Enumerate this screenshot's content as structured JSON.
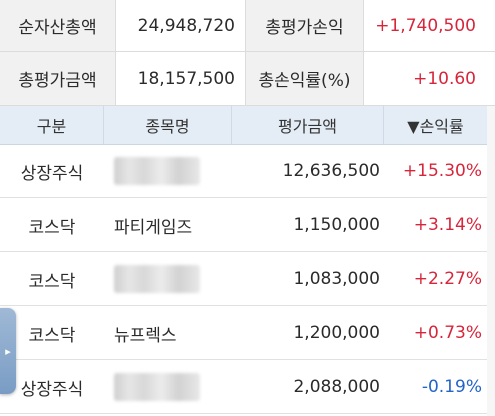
{
  "summary": {
    "rows": [
      {
        "label1": "순자산총액",
        "value1": "24,948,720",
        "label2": "총평가손익",
        "value2": "+1,740,500"
      },
      {
        "label1": "총평가금액",
        "value1": "18,157,500",
        "label2": "총손익률(%)",
        "value2": "+10.60"
      }
    ]
  },
  "table": {
    "headers": {
      "type": "구분",
      "name": "종목명",
      "amount": "평가금액",
      "rate": "▼손익률"
    },
    "rows": [
      {
        "type": "상장주식",
        "name": "",
        "amount": "12,636,500",
        "rate": "+15.30%",
        "blurred": true
      },
      {
        "type": "코스닥",
        "name": "파티게임즈",
        "amount": "1,150,000",
        "rate": "+3.14%",
        "blurred": false
      },
      {
        "type": "코스닥",
        "name": "",
        "amount": "1,083,000",
        "rate": "+2.27%",
        "blurred": true
      },
      {
        "type": "코스닥",
        "name": "뉴프렉스",
        "amount": "1,200,000",
        "rate": "+0.73%",
        "blurred": false
      },
      {
        "type": "상장주식",
        "name": "",
        "amount": "2,088,000",
        "rate": "-0.19%",
        "blurred": true
      }
    ]
  },
  "colors": {
    "positive": "#d7263b",
    "negative": "#2364c8",
    "header_bg": "#e4edf6",
    "label_bg": "#f1f1f1"
  },
  "side_tab_icon": "chevron-right-icon"
}
